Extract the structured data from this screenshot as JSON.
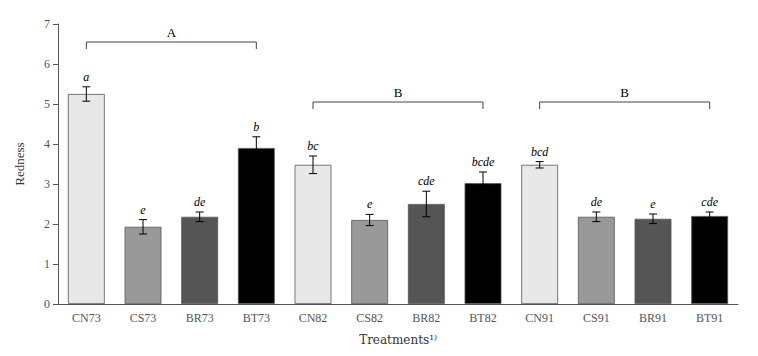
{
  "chart_data": {
    "type": "bar",
    "categories": [
      "CN73",
      "CS73",
      "BR73",
      "BT73",
      "CN82",
      "CS82",
      "BR82",
      "BT82",
      "CN91",
      "CS91",
      "BR91",
      "BT91"
    ],
    "values": [
      5.25,
      1.93,
      2.18,
      3.9,
      3.48,
      2.1,
      2.5,
      3.02,
      3.48,
      2.18,
      2.13,
      2.2
    ],
    "errors": [
      0.18,
      0.18,
      0.12,
      0.28,
      0.22,
      0.14,
      0.32,
      0.28,
      0.08,
      0.12,
      0.12,
      0.1
    ],
    "colors": [
      "#e8e8e8",
      "#999999",
      "#555555",
      "#000000",
      "#e8e8e8",
      "#999999",
      "#555555",
      "#000000",
      "#e8e8e8",
      "#999999",
      "#555555",
      "#000000"
    ],
    "letter_labels": [
      "a",
      "e",
      "de",
      "b",
      "bc",
      "e",
      "cde",
      "bcde",
      "bcd",
      "de",
      "e",
      "cde"
    ],
    "brackets": [
      {
        "label": "A",
        "from": "CN73",
        "to": "BT73",
        "y": 6.55
      },
      {
        "label": "B",
        "from": "CN82",
        "to": "BT82",
        "y": 5.05
      },
      {
        "label": "B",
        "from": "CN91",
        "to": "BT91",
        "y": 5.05
      }
    ],
    "ylabel": "Redness",
    "xlabel": "Treatments¹⁾",
    "ylim": [
      0,
      7
    ],
    "yticks": [
      0,
      1,
      2,
      3,
      4,
      5,
      6,
      7
    ],
    "grid": false
  }
}
